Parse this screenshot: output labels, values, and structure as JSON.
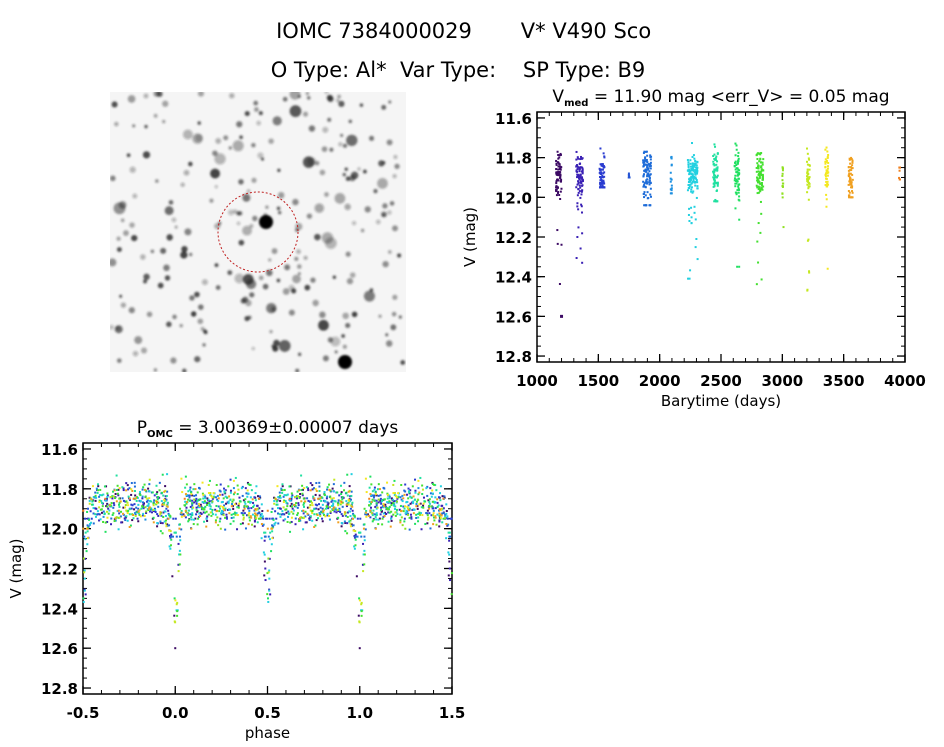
{
  "header": {
    "line1_id": "IOMC 7384000029",
    "line1_name": "V* V490 Sco",
    "line2": "O Type: Al*  Var Type:    SP Type: B9"
  },
  "image": {
    "kind": "star-field finder chart",
    "aperture_color": "#c02020"
  },
  "chart_data": [
    {
      "type": "scatter",
      "title_main": "V",
      "title_sub": "med",
      "title_rest": " = 11.90 mag <err_V> = 0.05 mag",
      "xlabel": "Barytime (days)",
      "ylabel": "V (mag)",
      "xlim": [
        1000,
        4000
      ],
      "ylim": [
        11.57,
        12.83
      ],
      "y_inverted": true,
      "xticks": [
        "1000",
        "1500",
        "2000",
        "2500",
        "3000",
        "3500",
        "4000"
      ],
      "xtick_values": [
        1000,
        1500,
        2000,
        2500,
        3000,
        3500,
        4000
      ],
      "yticks": [
        "11.6",
        "11.8",
        "12.0",
        "12.2",
        "12.4",
        "12.6",
        "12.8"
      ],
      "ytick_values": [
        11.6,
        11.8,
        12.0,
        12.2,
        12.4,
        12.6,
        12.8
      ],
      "grid": false,
      "seasons": [
        {
          "t": [
            1155,
            1200
          ],
          "v": [
            11.65,
            12.6
          ],
          "color": "#3c0a64"
        },
        {
          "t": [
            1320,
            1375
          ],
          "v": [
            11.72,
            12.33
          ],
          "color": "#3a20b4"
        },
        {
          "t": [
            1510,
            1550
          ],
          "v": [
            11.73,
            11.95
          ],
          "color": "#2a3cd0"
        },
        {
          "t": [
            1745,
            1755
          ],
          "v": [
            11.88,
            11.9
          ],
          "color": "#2454d4"
        },
        {
          "t": [
            1865,
            1930
          ],
          "v": [
            11.77,
            12.04
          ],
          "color": "#1e6cd8"
        },
        {
          "t": [
            2090,
            2100
          ],
          "v": [
            11.76,
            11.98
          ],
          "color": "#1e90e0"
        },
        {
          "t": [
            2230,
            2310
          ],
          "v": [
            11.67,
            12.41
          ],
          "color": "#22d0e0"
        },
        {
          "t": [
            2435,
            2475
          ],
          "v": [
            11.72,
            12.02
          ],
          "color": "#20e0a0"
        },
        {
          "t": [
            2610,
            2650
          ],
          "v": [
            11.7,
            12.35
          ],
          "color": "#20e060"
        },
        {
          "t": [
            2790,
            2845
          ],
          "v": [
            11.68,
            12.44
          ],
          "color": "#44e030"
        },
        {
          "t": [
            3000,
            3010
          ],
          "v": [
            11.81,
            12.15
          ],
          "color": "#90e020"
        },
        {
          "t": [
            3200,
            3225
          ],
          "v": [
            11.64,
            12.47
          ],
          "color": "#c4e820"
        },
        {
          "t": [
            3350,
            3375
          ],
          "v": [
            11.73,
            12.36
          ],
          "color": "#f4e820"
        },
        {
          "t": [
            3540,
            3575
          ],
          "v": [
            11.72,
            12.0
          ],
          "color": "#f0a020"
        },
        {
          "t": [
            3950,
            3960
          ],
          "v": [
            11.85,
            11.91
          ],
          "color": "#f08020"
        }
      ]
    },
    {
      "type": "scatter",
      "title_main": "P",
      "title_sub": "OMC",
      "title_rest": " = 3.00369±0.00007 days",
      "xlabel": "phase",
      "ylabel": "V (mag)",
      "xlim": [
        -0.5,
        1.5
      ],
      "ylim": [
        11.57,
        12.83
      ],
      "y_inverted": true,
      "xticks": [
        "-0.5",
        "0.0",
        "0.5",
        "1.0",
        "1.5"
      ],
      "xtick_values": [
        -0.5,
        0.0,
        0.5,
        1.0,
        1.5
      ],
      "yticks": [
        "11.6",
        "11.8",
        "12.0",
        "12.2",
        "12.4",
        "12.6",
        "12.8"
      ],
      "ytick_values": [
        11.6,
        11.8,
        12.0,
        12.2,
        12.4,
        12.6,
        12.8
      ],
      "grid": false,
      "period_days": 3.00369,
      "out_of_eclipse_v": 11.9,
      "primary_min": {
        "phase": 0.0,
        "v": 12.6
      },
      "secondary_min": {
        "phase": 0.5,
        "v": 12.45
      }
    }
  ]
}
